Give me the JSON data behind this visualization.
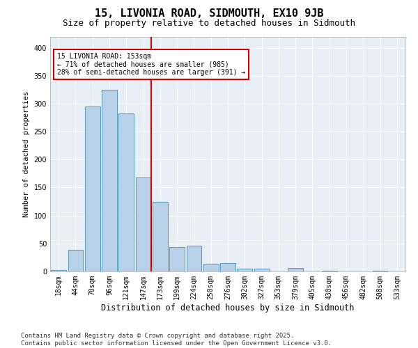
{
  "title": "15, LIVONIA ROAD, SIDMOUTH, EX10 9JB",
  "subtitle": "Size of property relative to detached houses in Sidmouth",
  "xlabel": "Distribution of detached houses by size in Sidmouth",
  "ylabel": "Number of detached properties",
  "categories": [
    "18sqm",
    "44sqm",
    "70sqm",
    "96sqm",
    "121sqm",
    "147sqm",
    "173sqm",
    "199sqm",
    "224sqm",
    "250sqm",
    "276sqm",
    "302sqm",
    "327sqm",
    "353sqm",
    "379sqm",
    "405sqm",
    "430sqm",
    "456sqm",
    "482sqm",
    "508sqm",
    "533sqm"
  ],
  "values": [
    3,
    38,
    295,
    325,
    283,
    168,
    125,
    44,
    46,
    14,
    15,
    5,
    5,
    0,
    6,
    0,
    1,
    0,
    0,
    1,
    0
  ],
  "bar_color": "#b8d0e8",
  "bar_edge_color": "#5599bb",
  "annotation_text": "15 LIVONIA ROAD: 153sqm\n← 71% of detached houses are smaller (985)\n28% of semi-detached houses are larger (391) →",
  "annotation_box_color": "#ffffff",
  "annotation_box_edge_color": "#cc0000",
  "vline_color": "#cc0000",
  "vline_x": 5.45,
  "ylim": [
    0,
    420
  ],
  "yticks": [
    0,
    50,
    100,
    150,
    200,
    250,
    300,
    350,
    400
  ],
  "background_color": "#e8eef5",
  "footer_text": "Contains HM Land Registry data © Crown copyright and database right 2025.\nContains public sector information licensed under the Open Government Licence v3.0.",
  "title_fontsize": 11,
  "subtitle_fontsize": 9,
  "xlabel_fontsize": 8.5,
  "ylabel_fontsize": 7.5,
  "tick_fontsize": 7,
  "annotation_fontsize": 7,
  "footer_fontsize": 6.5
}
